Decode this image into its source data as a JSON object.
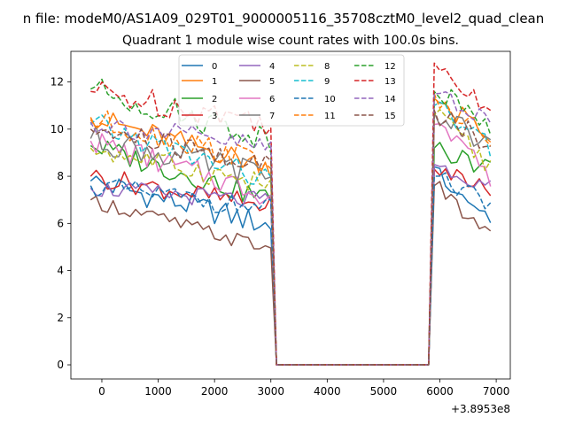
{
  "chart_data": {
    "type": "line",
    "suptitle": "n file: modeM0/AS1A09_029T01_9000005116_35708cztM0_level2_quad_clean",
    "title": "Quadrant 1 module wise count rates with 100.0s bins.",
    "xlabel": "",
    "ylabel": "",
    "x_offset_label": "+3.8953e8",
    "xlim": [
      -550,
      7250
    ],
    "ylim": [
      -0.6,
      13.3
    ],
    "xticks": [
      0,
      1000,
      2000,
      3000,
      4000,
      5000,
      6000,
      7000
    ],
    "xtick_labels": [
      "0",
      "1000",
      "2000",
      "3000",
      "4000",
      "5000",
      "6000",
      "7000"
    ],
    "yticks": [
      0,
      2,
      4,
      6,
      8,
      10,
      12
    ],
    "ytick_labels": [
      "0",
      "2",
      "4",
      "6",
      "8",
      "10",
      "12"
    ],
    "grid": false,
    "legend_position": "top-center",
    "legend_ncols": 4,
    "gap_segment": {
      "x": [
        3000,
        3100,
        5800,
        5900
      ],
      "y": [
        0.0,
        0.0,
        0.0,
        0.0
      ]
    },
    "seg1_x_start": -200,
    "seg1_x_step": 100,
    "seg2_x_start": 5900,
    "seg2_x_step": 100,
    "series": [
      {
        "name": "0",
        "color": "#1f77b4",
        "dashed": false,
        "seg1_start": 7.8,
        "seg1_end": 5.9,
        "seg1_amp": 0.55,
        "seg2_start": 8.4,
        "seg2_end": 6.2,
        "seg2_amp": 0.45
      },
      {
        "name": "1",
        "color": "#ff7f0e",
        "dashed": false,
        "seg1_start": 10.5,
        "seg1_end": 8.4,
        "seg1_amp": 0.5,
        "seg2_start": 11.3,
        "seg2_end": 9.8,
        "seg2_amp": 0.5
      },
      {
        "name": "2",
        "color": "#2ca02c",
        "dashed": false,
        "seg1_start": 9.3,
        "seg1_end": 7.0,
        "seg1_amp": 0.5,
        "seg2_start": 9.2,
        "seg2_end": 8.3,
        "seg2_amp": 0.45
      },
      {
        "name": "3",
        "color": "#d62728",
        "dashed": false,
        "seg1_start": 8.0,
        "seg1_end": 6.7,
        "seg1_amp": 0.45,
        "seg2_start": 8.3,
        "seg2_end": 7.4,
        "seg2_amp": 0.35
      },
      {
        "name": "4",
        "color": "#9467bd",
        "dashed": false,
        "seg1_start": 7.5,
        "seg1_end": 6.9,
        "seg1_amp": 0.4,
        "seg2_start": 8.5,
        "seg2_end": 7.6,
        "seg2_amp": 0.35
      },
      {
        "name": "5",
        "color": "#8c564b",
        "dashed": false,
        "seg1_start": 7.0,
        "seg1_end": 4.9,
        "seg1_amp": 0.35,
        "seg2_start": 7.6,
        "seg2_end": 5.4,
        "seg2_amp": 0.4
      },
      {
        "name": "6",
        "color": "#e377c2",
        "dashed": false,
        "seg1_start": 9.5,
        "seg1_end": 7.2,
        "seg1_amp": 0.55,
        "seg2_start": 10.2,
        "seg2_end": 8.0,
        "seg2_amp": 0.5
      },
      {
        "name": "7",
        "color": "#7f7f7f",
        "dashed": false,
        "seg1_start": 9.6,
        "seg1_end": 8.0,
        "seg1_amp": 0.6,
        "seg2_start": 10.7,
        "seg2_end": 9.3,
        "seg2_amp": 0.5
      },
      {
        "name": "8",
        "color": "#bcbd22",
        "dashed": true,
        "seg1_start": 9.2,
        "seg1_end": 7.6,
        "seg1_amp": 0.5,
        "seg2_start": 10.6,
        "seg2_end": 8.4,
        "seg2_amp": 0.5
      },
      {
        "name": "9",
        "color": "#17becf",
        "dashed": true,
        "seg1_start": 10.2,
        "seg1_end": 7.8,
        "seg1_amp": 0.55,
        "seg2_start": 11.0,
        "seg2_end": 9.2,
        "seg2_amp": 0.55
      },
      {
        "name": "10",
        "color": "#1f77b4",
        "dashed": true,
        "seg1_start": 7.6,
        "seg1_end": 6.6,
        "seg1_amp": 0.45,
        "seg2_start": 8.0,
        "seg2_end": 6.9,
        "seg2_amp": 0.4
      },
      {
        "name": "11",
        "color": "#ff7f0e",
        "dashed": true,
        "seg1_start": 10.4,
        "seg1_end": 8.6,
        "seg1_amp": 0.55,
        "seg2_start": 11.5,
        "seg2_end": 9.6,
        "seg2_amp": 0.5
      },
      {
        "name": "12",
        "color": "#2ca02c",
        "dashed": true,
        "seg1_start": 11.7,
        "seg1_end": 9.6,
        "seg1_amp": 0.6,
        "seg2_start": 11.6,
        "seg2_end": 10.2,
        "seg2_amp": 0.5
      },
      {
        "name": "13",
        "color": "#d62728",
        "dashed": true,
        "seg1_start": 11.6,
        "seg1_end": 10.3,
        "seg1_amp": 0.6,
        "seg2_start": 12.8,
        "seg2_end": 10.9,
        "seg2_amp": 0.45
      },
      {
        "name": "14",
        "color": "#9467bd",
        "dashed": true,
        "seg1_start": 10.3,
        "seg1_end": 9.2,
        "seg1_amp": 0.5,
        "seg2_start": 11.5,
        "seg2_end": 10.3,
        "seg2_amp": 0.45
      },
      {
        "name": "15",
        "color": "#8c564b",
        "dashed": true,
        "seg1_start": 10.0,
        "seg1_end": 8.4,
        "seg1_amp": 0.55,
        "seg2_start": 10.8,
        "seg2_end": 9.3,
        "seg2_amp": 0.5
      }
    ]
  }
}
